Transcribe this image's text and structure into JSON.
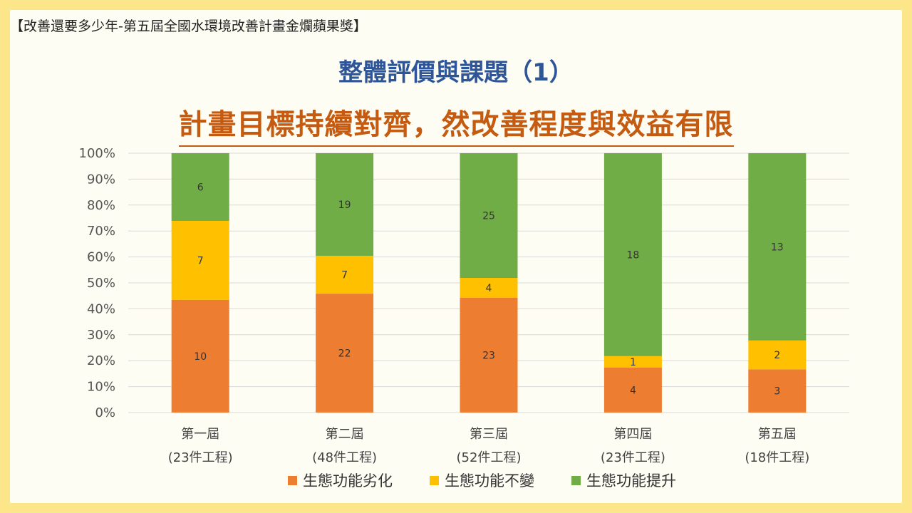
{
  "header": {
    "topline": "【改善還要多少年-第五屆全國水環境改善計畫金爛蘋果獎】",
    "title": "整體評價與課題（1）",
    "subtitle": "計畫目標持續對齊，然改善程度與效益有限"
  },
  "chart_data": {
    "type": "bar",
    "stacked": true,
    "percent_stacked": true,
    "categories": [
      "第一屆",
      "第二屆",
      "第三屆",
      "第四屆",
      "第五屆"
    ],
    "category_sublabels": [
      "(23件工程)",
      "(48件工程)",
      "(52件工程)",
      "(23件工程)",
      "(18件工程)"
    ],
    "series": [
      {
        "name": "生態功能劣化",
        "color": "#ed7d31",
        "values": [
          10,
          22,
          23,
          4,
          3
        ]
      },
      {
        "name": "生態功能不變",
        "color": "#ffc000",
        "values": [
          7,
          7,
          4,
          1,
          2
        ]
      },
      {
        "name": "生態功能提升",
        "color": "#70ad47",
        "values": [
          6,
          19,
          25,
          18,
          13
        ]
      }
    ],
    "ylim": [
      0,
      100
    ],
    "y_ticks": [
      "0%",
      "10%",
      "20%",
      "30%",
      "40%",
      "50%",
      "60%",
      "70%",
      "80%",
      "90%",
      "100%"
    ],
    "grid": true,
    "legend_position": "bottom"
  }
}
